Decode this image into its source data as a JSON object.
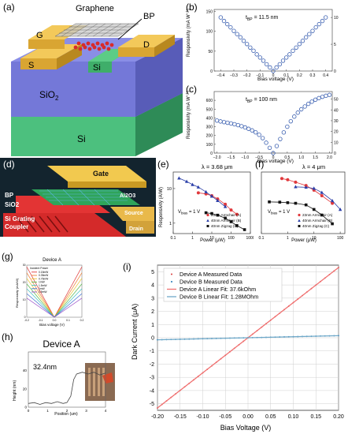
{
  "panels": {
    "a": {
      "label": "(a)",
      "graphene": "Graphene",
      "bp": "BP",
      "g": "G",
      "d": "D",
      "s": "S",
      "si_top": "Si",
      "sio2": "SiO",
      "sio2_sub": "2",
      "si_bottom": "Si"
    },
    "b": {
      "label": "(b)",
      "annotation": "t",
      "annotation_sub": "BP",
      "annotation_value": " = 11.5 nm",
      "ylabel": "Responsivity (mA W",
      "ylabel_sup": "−1",
      "ylabel_end": ")",
      "xlabel": "Bias voltage (V)"
    },
    "c": {
      "label": "(c)",
      "annotation": "t",
      "annotation_sub": "BP",
      "annotation_value": " = 100 nm",
      "ylabel": "Responsivity (mA W",
      "ylabel_sup": "−1",
      "ylabel_end": ")",
      "xlabel": "Bias voltage (V)"
    },
    "d": {
      "label": "(d)",
      "gate": "Gate",
      "al2o3": "Al2O3",
      "bp": "BP",
      "sio2": "SiO2",
      "source": "Source",
      "grating": "Si Grating",
      "coupler": "Coupler",
      "drain": "Drain"
    },
    "e": {
      "label": "(e)",
      "lambda": "λ = 3.68 μm",
      "vbias": "V",
      "vbias_sub": "bias",
      "vbias_value": " = 1 V",
      "ylabel": "Responsivity (A/W)",
      "xlabel": "Power (μW)"
    },
    "f": {
      "label": "(f)",
      "lambda": "λ = 4 μm",
      "vbias": "V",
      "vbias_sub": "bias",
      "vbias_value": " = 1 V",
      "xlabel": "Power (μW)"
    },
    "g": {
      "label": "(g)",
      "title": "Device A",
      "legend_title": "Incident Power",
      "ylabel": "Responsivity (mA/W)",
      "xlabel": "Bias voltage (V)"
    },
    "h": {
      "label": "(h)",
      "title": "Device A",
      "height_label": "32.4nm",
      "ylabel": "Height (nm)",
      "xlabel": "Position (um)"
    },
    "i": {
      "label": "(i)",
      "ylabel": "Dark Current (μA)",
      "xlabel": "Bias Voltage (V)"
    }
  },
  "chart_data": [
    {
      "panel": "b",
      "type": "scatter",
      "xlabel": "Bias voltage (V)",
      "ylabel": "Responsivity (mA W−1)",
      "xlim": [
        -0.45,
        0.45
      ],
      "ylim": [
        0,
        155
      ],
      "xticks": [
        -0.4,
        -0.3,
        -0.2,
        -0.1,
        0.0,
        0.1,
        0.2,
        0.3,
        0.4
      ],
      "xticklabels": [
        "−0.4",
        "−0.3",
        "−0.2",
        "−0.1",
        "0",
        "0.1",
        "0.2",
        "0.3",
        "0.4"
      ],
      "yticks": [
        0,
        50,
        100,
        150
      ],
      "y2ticks": [
        0,
        5,
        10
      ],
      "y2lim": [
        0,
        11.5
      ],
      "series": [
        {
          "x": [
            -0.4,
            -0.375,
            -0.35,
            -0.325,
            -0.3,
            -0.275,
            -0.25,
            -0.225,
            -0.2,
            -0.175,
            -0.15,
            -0.125,
            -0.1,
            -0.075,
            -0.05,
            -0.025,
            0,
            0.025,
            0.05,
            0.075,
            0.1,
            0.125,
            0.15,
            0.175,
            0.2,
            0.225,
            0.25,
            0.275,
            0.3,
            0.325,
            0.35,
            0.375,
            0.4
          ],
          "y": [
            135,
            126,
            118,
            110,
            101,
            93,
            85,
            76,
            68,
            59,
            51,
            42,
            34,
            26,
            17,
            9,
            0,
            9,
            17,
            26,
            34,
            42,
            51,
            59,
            68,
            76,
            85,
            93,
            101,
            110,
            118,
            126,
            135
          ],
          "color": "#3a5fb0"
        }
      ]
    },
    {
      "panel": "c",
      "type": "scatter",
      "xlabel": "Bias voltage (V)",
      "ylabel": "Responsivity (mA W−1)",
      "xlim": [
        -2.1,
        2.1
      ],
      "ylim": [
        0,
        700
      ],
      "xticks": [
        -2.0,
        -1.5,
        -1.0,
        -0.5,
        0.0,
        0.5,
        1.0,
        1.5,
        2.0
      ],
      "xticklabels": [
        "−2.0",
        "−1.5",
        "−1.0",
        "−0.5",
        "0",
        "0.5",
        "1.0",
        "1.5",
        "2.0"
      ],
      "yticks": [
        0,
        100,
        200,
        300,
        400,
        500,
        600
      ],
      "y2ticks": [
        0,
        10,
        20,
        30,
        40,
        50
      ],
      "y2lim": [
        0,
        57
      ],
      "series": [
        {
          "x": [
            -2.0,
            -1.875,
            -1.75,
            -1.625,
            -1.5,
            -1.375,
            -1.25,
            -1.125,
            -1.0,
            -0.875,
            -0.75,
            -0.625,
            -0.5,
            -0.375,
            -0.25,
            -0.125,
            0,
            0.125,
            0.25,
            0.375,
            0.5,
            0.625,
            0.75,
            0.875,
            1.0,
            1.125,
            1.25,
            1.375,
            1.5,
            1.625,
            1.75,
            1.875,
            2.0
          ],
          "y": [
            370,
            360,
            352,
            345,
            337,
            328,
            318,
            306,
            292,
            276,
            258,
            236,
            208,
            170,
            118,
            60,
            0,
            80,
            160,
            235,
            300,
            362,
            415,
            460,
            498,
            530,
            560,
            585,
            607,
            625,
            640,
            652,
            662
          ],
          "color": "#3a5fb0"
        }
      ]
    },
    {
      "panel": "e",
      "type": "scatter",
      "xlabel": "Power (μW)",
      "ylabel": "Responsivity (A/W)",
      "xscale": "log",
      "yscale": "log",
      "xlim": [
        0.1,
        1000
      ],
      "ylim": [
        0.5,
        30
      ],
      "xticks": [
        0.1,
        1,
        10,
        100,
        1000
      ],
      "xticklabels": [
        "0.1",
        "1",
        "10",
        "100",
        "1000"
      ],
      "yticks": [
        1,
        10
      ],
      "legend": [
        "23nm Armchair (A)",
        "40nm Armchair (B)",
        "40nm Zigzag (C)"
      ],
      "series": [
        {
          "name": "23nm Armchair (A)",
          "color": "#e0383c",
          "marker": "circle",
          "x": [
            2,
            5,
            10,
            20,
            50,
            100,
            200
          ],
          "y": [
            7.5,
            7.0,
            6.2,
            5.0,
            3.5,
            2.4,
            1.8
          ]
        },
        {
          "name": "40nm Armchair (B)",
          "color": "#2b3fa8",
          "marker": "triangle",
          "x": [
            0.2,
            0.5,
            1,
            2,
            5,
            10,
            20,
            50
          ],
          "y": [
            20,
            16,
            13,
            11,
            8,
            6,
            4.5,
            3
          ]
        },
        {
          "name": "40nm Zigzag (C)",
          "color": "#111111",
          "marker": "square",
          "x": [
            5,
            10,
            20,
            50,
            100,
            200,
            500
          ],
          "y": [
            2.0,
            1.9,
            1.7,
            1.4,
            1.1,
            0.85,
            0.65
          ]
        }
      ]
    },
    {
      "panel": "f",
      "type": "scatter",
      "xlabel": "Power (μW)",
      "xscale": "log",
      "yscale": "log",
      "xlim": [
        0.1,
        150
      ],
      "ylim": [
        0.01,
        10
      ],
      "xticks": [
        0.1,
        1,
        10,
        100
      ],
      "xticklabels": [
        "0.1",
        "1",
        "10",
        "100"
      ],
      "legend": [
        "23nm Armchair (A)",
        "40nm Armchair (B)",
        "40nm Zigzag (C)"
      ],
      "series": [
        {
          "name": "23nm Armchair (A)",
          "color": "#e0383c",
          "marker": "circle",
          "x": [
            0.6,
            1,
            2,
            5,
            10,
            20,
            50
          ],
          "y": [
            4.8,
            4.2,
            3.2,
            2.2,
            1.3,
            0.7,
            0.3
          ]
        },
        {
          "name": "40nm Armchair (B)",
          "color": "#2b3fa8",
          "marker": "triangle",
          "x": [
            2,
            5,
            10,
            20,
            50,
            100
          ],
          "y": [
            1.9,
            1.8,
            1.6,
            1.0,
            0.4,
            0.15
          ]
        },
        {
          "name": "40nm Zigzag (C)",
          "color": "#111111",
          "marker": "square",
          "x": [
            0.2,
            0.5,
            1,
            2,
            5,
            10,
            20,
            50
          ],
          "y": [
            0.35,
            0.34,
            0.32,
            0.3,
            0.25,
            0.15,
            0.08,
            0.03
          ]
        }
      ]
    },
    {
      "panel": "g",
      "type": "line",
      "xlabel": "Bias voltage (V)",
      "ylabel": "Responsivity (mA/W)",
      "xlim": [
        -0.2,
        0.2
      ],
      "ylim": [
        0,
        30
      ],
      "xticks": [
        -0.2,
        -0.1,
        0.0,
        0.1,
        0.2
      ],
      "xticklabels": [
        "-0.2",
        "-0.1",
        "0.0",
        "0.1",
        "0.2"
      ],
      "yticks": [
        0,
        10,
        20,
        30
      ],
      "legend_title": "Incident Power",
      "series": [
        {
          "name": "0.15mW",
          "color": "#e03a3a",
          "slope": 145
        },
        {
          "name": "0.35mW",
          "color": "#ef7d2f",
          "slope": 128
        },
        {
          "name": "0.75mW",
          "color": "#e8c32e",
          "slope": 112
        },
        {
          "name": "1mW",
          "color": "#57b84a",
          "slope": 96
        },
        {
          "name": "1.5mW",
          "color": "#3fbfbf",
          "slope": 82
        },
        {
          "name": "2mW",
          "color": "#3d6fd1",
          "slope": 68
        },
        {
          "name": "2.5mW",
          "color": "#9a4fc8",
          "slope": 55
        }
      ]
    },
    {
      "panel": "h",
      "type": "line",
      "xlabel": "Position (um)",
      "ylabel": "Height (nm)",
      "xlim": [
        0,
        4
      ],
      "ylim": [
        0,
        60
      ],
      "xticks": [
        0,
        1,
        2,
        3,
        4
      ],
      "yticks": [
        0,
        20,
        40
      ],
      "series": [
        {
          "x": [
            0,
            0.3,
            0.6,
            0.9,
            1.2,
            1.5,
            1.8,
            2.0,
            2.2,
            2.35,
            2.5,
            2.8,
            3.1,
            3.4,
            3.7,
            4.0
          ],
          "y": [
            4,
            5,
            3,
            5,
            4,
            6,
            4,
            5,
            12,
            30,
            36,
            38,
            36,
            38,
            35,
            37
          ],
          "color": "#444444"
        }
      ]
    },
    {
      "panel": "i",
      "type": "line",
      "xlabel": "Bias Voltage (V)",
      "ylabel": "Dark Current (μA)",
      "xlim": [
        -0.2,
        0.2
      ],
      "ylim": [
        -5.5,
        5.5
      ],
      "xticks": [
        -0.2,
        -0.15,
        -0.1,
        -0.05,
        0.0,
        0.05,
        0.1,
        0.15,
        0.2
      ],
      "xticklabels": [
        "-0.20",
        "-0.15",
        "-0.10",
        "-0.05",
        "0.00",
        "0.05",
        "0.10",
        "0.15",
        "0.20"
      ],
      "yticks": [
        -5,
        -4,
        -3,
        -2,
        -1,
        0,
        1,
        2,
        3,
        4,
        5
      ],
      "legend": [
        "Device A Measured Data",
        "Device B Measured Data",
        "Device A Linear Fit: 37.6kOhm",
        "Device B Linear Fit: 1.28MOhm"
      ],
      "series": [
        {
          "name": "Device A Measured Data",
          "color": "#d83a3a",
          "marker": "dot",
          "slope_uA_per_V": 26.6
        },
        {
          "name": "Device B Measured Data",
          "color": "#1f78b4",
          "marker": "dot",
          "slope_uA_per_V": 0.78
        },
        {
          "name": "Device A Linear Fit: 37.6kOhm",
          "color": "#f07070",
          "marker": "line",
          "slope_uA_per_V": 26.6
        },
        {
          "name": "Device B Linear Fit: 1.28MOhm",
          "color": "#6fa9c9",
          "marker": "line",
          "slope_uA_per_V": 0.78
        }
      ]
    }
  ]
}
